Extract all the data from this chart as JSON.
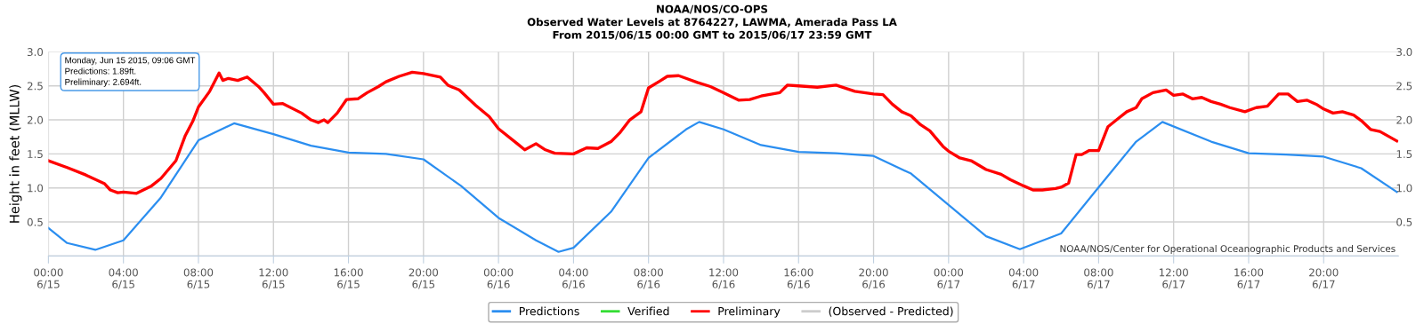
{
  "chart_data": {
    "type": "line",
    "title": "NOAA/NOS/CO-OPS",
    "subtitle": "Observed Water Levels at 8764227, LAWMA, Amerada Pass LA\nFrom 2015/06/15 00:00 GMT to 2015/06/17 23:59 GMT",
    "ylabel": "Height in feet (MLLW)",
    "xlim": [
      "2015-06-15T00:00",
      "2015-06-17T23:59"
    ],
    "xticks": [
      {
        "value": "2015-06-15T00:00",
        "label": "00:00\n6/15"
      },
      {
        "value": "2015-06-15T04:00",
        "label": "04:00\n6/15"
      },
      {
        "value": "2015-06-15T08:00",
        "label": "08:00\n6/15"
      },
      {
        "value": "2015-06-15T12:00",
        "label": "12:00\n6/15"
      },
      {
        "value": "2015-06-15T16:00",
        "label": "16:00\n6/15"
      },
      {
        "value": "2015-06-15T20:00",
        "label": "20:00\n6/15"
      },
      {
        "value": "2015-06-16T00:00",
        "label": "00:00\n6/16"
      },
      {
        "value": "2015-06-16T04:00",
        "label": "04:00\n6/16"
      },
      {
        "value": "2015-06-16T08:00",
        "label": "08:00\n6/16"
      },
      {
        "value": "2015-06-16T12:00",
        "label": "12:00\n6/16"
      },
      {
        "value": "2015-06-16T16:00",
        "label": "16:00\n6/16"
      },
      {
        "value": "2015-06-16T20:00",
        "label": "20:00\n6/16"
      },
      {
        "value": "2015-06-17T00:00",
        "label": "00:00\n6/17"
      },
      {
        "value": "2015-06-17T04:00",
        "label": "04:00\n6/17"
      },
      {
        "value": "2015-06-17T08:00",
        "label": "08:00\n6/17"
      },
      {
        "value": "2015-06-17T12:00",
        "label": "12:00\n6/17"
      },
      {
        "value": "2015-06-17T16:00",
        "label": "16:00\n6/17"
      },
      {
        "value": "2015-06-17T20:00",
        "label": "20:00\n6/17"
      }
    ],
    "ylim": [
      0,
      3.0
    ],
    "yticks": [
      {
        "value": 0,
        "label": null
      },
      {
        "value": 0.5,
        "label": "0.5"
      },
      {
        "value": 1.0,
        "label": "1.0"
      },
      {
        "value": 1.5,
        "label": "1.5"
      },
      {
        "value": 2.0,
        "label": "2.0"
      },
      {
        "value": 2.5,
        "label": "2.5"
      },
      {
        "value": 3.0,
        "label": "3.0"
      }
    ],
    "y2lim": [
      0,
      3.0
    ],
    "y2ticks": [
      {
        "value": 0,
        "label": null
      },
      {
        "value": 0.5,
        "label": "0.5"
      },
      {
        "value": 1.0,
        "label": "1.0"
      },
      {
        "value": 1.5,
        "label": "1.5"
      },
      {
        "value": 2.0,
        "label": "2.0"
      },
      {
        "value": 2.5,
        "label": "2.5"
      },
      {
        "value": 3.0,
        "label": "3.0"
      }
    ],
    "grid": true,
    "legend": "bottom",
    "marker": "none",
    "line_style": "solid",
    "series": [
      {
        "name": "Predictions",
        "color": "#2b8ef0",
        "x": [
          "2015-06-15T00:00",
          "2015-06-15T01:00",
          "2015-06-15T02:30",
          "2015-06-15T04:00",
          "2015-06-15T06:00",
          "2015-06-15T08:00",
          "2015-06-15T09:54",
          "2015-06-15T12:00",
          "2015-06-15T14:00",
          "2015-06-15T16:00",
          "2015-06-15T18:00",
          "2015-06-15T20:00",
          "2015-06-15T22:00",
          "2015-06-16T00:00",
          "2015-06-16T02:00",
          "2015-06-16T03:12",
          "2015-06-16T04:00",
          "2015-06-16T06:00",
          "2015-06-16T08:00",
          "2015-06-16T10:00",
          "2015-06-16T10:42",
          "2015-06-16T12:00",
          "2015-06-16T14:00",
          "2015-06-16T16:00",
          "2015-06-16T18:00",
          "2015-06-16T20:00",
          "2015-06-16T22:00",
          "2015-06-17T00:00",
          "2015-06-17T02:00",
          "2015-06-17T03:48",
          "2015-06-17T06:00",
          "2015-06-17T08:00",
          "2015-06-17T10:00",
          "2015-06-17T11:24",
          "2015-06-17T14:00",
          "2015-06-17T16:00",
          "2015-06-17T18:00",
          "2015-06-17T20:00",
          "2015-06-17T22:00",
          "2015-06-17T23:54"
        ],
        "values": [
          0.41,
          0.19,
          0.09,
          0.23,
          0.86,
          1.7,
          1.95,
          1.79,
          1.62,
          1.52,
          1.5,
          1.42,
          1.03,
          0.56,
          0.23,
          0.06,
          0.12,
          0.65,
          1.44,
          1.86,
          1.97,
          1.86,
          1.63,
          1.53,
          1.51,
          1.47,
          1.21,
          0.75,
          0.29,
          0.1,
          0.33,
          1.01,
          1.68,
          1.97,
          1.68,
          1.51,
          1.49,
          1.46,
          1.29,
          0.94
        ]
      },
      {
        "name": "Verified",
        "color": "#33dd33"
      },
      {
        "name": "Preliminary",
        "color": "#ff0000",
        "x": [
          "2015-06-15T00:00",
          "2015-06-15T01:00",
          "2015-06-15T02:00",
          "2015-06-15T03:00",
          "2015-06-15T03:18",
          "2015-06-15T03:42",
          "2015-06-15T04:00",
          "2015-06-15T04:42",
          "2015-06-15T05:30",
          "2015-06-15T06:00",
          "2015-06-15T06:48",
          "2015-06-15T07:18",
          "2015-06-15T07:42",
          "2015-06-15T08:00",
          "2015-06-15T08:36",
          "2015-06-15T09:06",
          "2015-06-15T09:18",
          "2015-06-15T09:36",
          "2015-06-15T10:06",
          "2015-06-15T10:36",
          "2015-06-15T11:12",
          "2015-06-15T11:30",
          "2015-06-15T12:00",
          "2015-06-15T12:30",
          "2015-06-15T13:30",
          "2015-06-15T14:00",
          "2015-06-15T14:24",
          "2015-06-15T14:42",
          "2015-06-15T14:54",
          "2015-06-15T15:24",
          "2015-06-15T15:54",
          "2015-06-15T16:30",
          "2015-06-15T17:00",
          "2015-06-15T17:36",
          "2015-06-15T18:00",
          "2015-06-15T18:42",
          "2015-06-15T19:24",
          "2015-06-15T20:00",
          "2015-06-15T20:54",
          "2015-06-15T21:18",
          "2015-06-15T21:54",
          "2015-06-15T22:48",
          "2015-06-15T23:30",
          "2015-06-16T00:00",
          "2015-06-16T01:00",
          "2015-06-16T01:24",
          "2015-06-16T02:00",
          "2015-06-16T02:30",
          "2015-06-16T03:00",
          "2015-06-16T04:00",
          "2015-06-16T04:42",
          "2015-06-16T05:18",
          "2015-06-16T06:00",
          "2015-06-16T06:30",
          "2015-06-16T07:00",
          "2015-06-16T07:36",
          "2015-06-16T08:00",
          "2015-06-16T08:36",
          "2015-06-16T09:00",
          "2015-06-16T09:36",
          "2015-06-16T10:00",
          "2015-06-16T10:36",
          "2015-06-16T11:18",
          "2015-06-16T12:00",
          "2015-06-16T12:48",
          "2015-06-16T13:24",
          "2015-06-16T14:00",
          "2015-06-16T15:00",
          "2015-06-16T15:24",
          "2015-06-16T16:00",
          "2015-06-16T17:00",
          "2015-06-16T18:00",
          "2015-06-16T19:00",
          "2015-06-16T19:30",
          "2015-06-16T20:00",
          "2015-06-16T20:30",
          "2015-06-16T21:00",
          "2015-06-16T21:30",
          "2015-06-16T22:00",
          "2015-06-16T22:30",
          "2015-06-16T23:00",
          "2015-06-16T23:42",
          "2015-06-17T00:00",
          "2015-06-17T00:36",
          "2015-06-17T01:12",
          "2015-06-17T02:00",
          "2015-06-17T02:48",
          "2015-06-17T03:18",
          "2015-06-17T04:00",
          "2015-06-17T04:30",
          "2015-06-17T05:00",
          "2015-06-17T05:42",
          "2015-06-17T06:00",
          "2015-06-17T06:24",
          "2015-06-17T06:48",
          "2015-06-17T07:06",
          "2015-06-17T07:30",
          "2015-06-17T08:00",
          "2015-06-17T08:30",
          "2015-06-17T09:00",
          "2015-06-17T09:30",
          "2015-06-17T10:00",
          "2015-06-17T10:18",
          "2015-06-17T10:54",
          "2015-06-17T11:36",
          "2015-06-17T12:00",
          "2015-06-17T12:30",
          "2015-06-17T13:00",
          "2015-06-17T13:30",
          "2015-06-17T14:00",
          "2015-06-17T14:30",
          "2015-06-17T15:00",
          "2015-06-17T15:48",
          "2015-06-17T16:24",
          "2015-06-17T17:00",
          "2015-06-17T17:36",
          "2015-06-17T18:06",
          "2015-06-17T18:36",
          "2015-06-17T19:06",
          "2015-06-17T19:36",
          "2015-06-17T20:00",
          "2015-06-17T20:30",
          "2015-06-17T21:00",
          "2015-06-17T21:36",
          "2015-06-17T22:00",
          "2015-06-17T22:30",
          "2015-06-17T23:00",
          "2015-06-17T23:54"
        ],
        "values": [
          1.4,
          1.3,
          1.19,
          1.06,
          0.97,
          0.93,
          0.94,
          0.92,
          1.03,
          1.14,
          1.4,
          1.77,
          1.98,
          2.19,
          2.42,
          2.69,
          2.58,
          2.61,
          2.58,
          2.63,
          2.49,
          2.4,
          2.23,
          2.24,
          2.1,
          2.0,
          1.96,
          2.0,
          1.96,
          2.1,
          2.3,
          2.31,
          2.4,
          2.49,
          2.56,
          2.64,
          2.7,
          2.68,
          2.63,
          2.51,
          2.44,
          2.21,
          2.05,
          1.87,
          1.65,
          1.56,
          1.65,
          1.56,
          1.51,
          1.5,
          1.59,
          1.58,
          1.68,
          1.82,
          2.0,
          2.12,
          2.47,
          2.57,
          2.64,
          2.65,
          2.61,
          2.55,
          2.49,
          2.4,
          2.29,
          2.3,
          2.35,
          2.4,
          2.51,
          2.5,
          2.48,
          2.51,
          2.42,
          2.4,
          2.38,
          2.37,
          2.23,
          2.12,
          2.06,
          1.93,
          1.84,
          1.61,
          1.54,
          1.44,
          1.4,
          1.27,
          1.2,
          1.12,
          1.03,
          0.97,
          0.97,
          0.99,
          1.01,
          1.07,
          1.49,
          1.49,
          1.55,
          1.55,
          1.9,
          2.01,
          2.12,
          2.18,
          2.31,
          2.4,
          2.44,
          2.36,
          2.38,
          2.31,
          2.33,
          2.27,
          2.23,
          2.18,
          2.12,
          2.18,
          2.2,
          2.38,
          2.38,
          2.27,
          2.29,
          2.23,
          2.16,
          2.1,
          2.12,
          2.07,
          1.99,
          1.86,
          1.83,
          1.69
        ]
      },
      {
        "name": "(Observed - Predicted)",
        "color": "#cccccc"
      }
    ],
    "annotations": [
      "Monday, Jun 15 2015, 09:06 GMT",
      "Predictions: 1.89ft.",
      "Preliminary: 2.694ft.",
      "NOAA/NOS/Center for Operational Oceanographic Products and Services"
    ]
  }
}
